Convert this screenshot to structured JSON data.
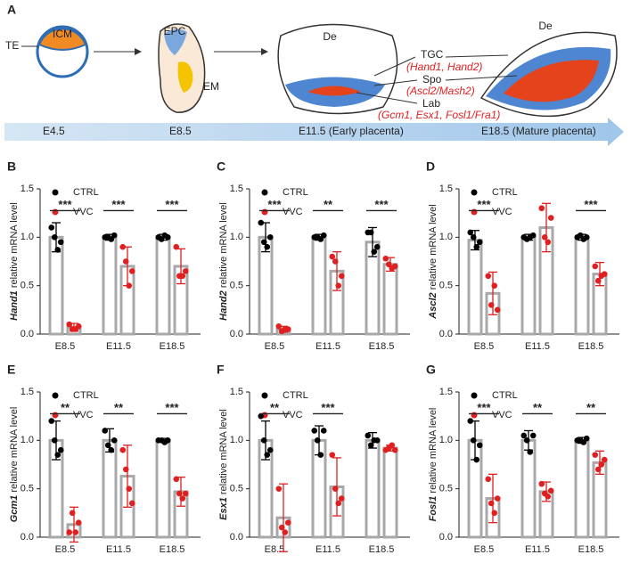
{
  "diagram": {
    "panel": "A",
    "te": "TE",
    "icm": "ICM",
    "epc": "EPC",
    "em": "EM",
    "de_early": "De",
    "de_mature": "De",
    "tgc": "TGC",
    "tgc_genes": "(Hand1, Hand2)",
    "spo": "Spo",
    "spo_genes": "(Ascl2/Mash2)",
    "lab": "Lab",
    "lab_genes": "(Gcm1, Esx1, Fosl1/Fra1)",
    "stages": [
      "E4.5",
      "E8.5",
      "E11.5 (Early placenta)",
      "E18.5 (Mature placenta)"
    ]
  },
  "chart_data": [
    {
      "type": "bar",
      "panel": "B",
      "ylabel": {
        "gene": "Hand1",
        "text": " relative mRNA level"
      },
      "categories": [
        "E8.5",
        "E11.5",
        "E18.5"
      ],
      "ylim": [
        0,
        1.5
      ],
      "yticks": [
        {
          "value": 0,
          "label": "0.0"
        },
        0.5,
        {
          "value": 1,
          "label": "1.0"
        },
        1.5
      ],
      "bar_color": "#a8a8a8",
      "series": [
        {
          "name": "CTRL",
          "color": "#000000",
          "values": [
            1.0,
            1.0,
            1.0
          ],
          "errors": [
            0.15,
            0.03,
            0.03
          ],
          "points": [
            [
              1.1,
              1.0,
              0.87,
              0.95
            ],
            [
              1.0,
              1.0,
              0.98,
              1.02
            ],
            [
              1.0,
              0.98,
              1.02,
              1.0
            ]
          ]
        },
        {
          "name": "VVC",
          "color": "#e02020",
          "values": [
            0.07,
            0.7,
            0.7
          ],
          "errors": [
            0.04,
            0.2,
            0.18
          ],
          "points": [
            [
              0.1,
              0.05,
              0.05,
              0.08
            ],
            [
              0.9,
              0.75,
              0.5,
              0.65
            ],
            [
              0.9,
              0.6,
              0.6,
              0.65
            ]
          ]
        }
      ],
      "significance": [
        "***",
        "***",
        "***"
      ]
    },
    {
      "type": "bar",
      "panel": "C",
      "ylabel": {
        "gene": "Hand2",
        "text": " relative mRNA level"
      },
      "categories": [
        "E8.5",
        "E11.5",
        "E18.5"
      ],
      "ylim": [
        0,
        1.5
      ],
      "yticks": [
        {
          "value": 0,
          "label": "0.0"
        },
        0.5,
        {
          "value": 1,
          "label": "1.0"
        },
        1.5
      ],
      "bar_color": "#a8a8a8",
      "series": [
        {
          "name": "CTRL",
          "color": "#000000",
          "values": [
            1.0,
            1.0,
            0.95
          ],
          "errors": [
            0.15,
            0.03,
            0.15
          ],
          "points": [
            [
              1.15,
              0.95,
              0.9,
              1.0
            ],
            [
              1.0,
              1.0,
              0.98,
              1.02
            ],
            [
              1.05,
              1.05,
              0.85,
              0.9
            ]
          ]
        },
        {
          "name": "VVC",
          "color": "#e02020",
          "values": [
            0.05,
            0.65,
            0.72
          ],
          "errors": [
            0.03,
            0.2,
            0.07
          ],
          "points": [
            [
              0.08,
              0.03,
              0.05,
              0.05
            ],
            [
              0.8,
              0.75,
              0.5,
              0.6
            ],
            [
              0.78,
              0.72,
              0.68,
              0.7
            ]
          ]
        }
      ],
      "significance": [
        "***",
        "**",
        "***"
      ]
    },
    {
      "type": "bar",
      "panel": "D",
      "ylabel": {
        "gene": "Ascl2",
        "text": " relative mRNA level"
      },
      "categories": [
        "E8.5",
        "E11.5",
        "E18.5"
      ],
      "ylim": [
        0,
        1.5
      ],
      "yticks": [
        {
          "value": 0,
          "label": "0.0"
        },
        0.5,
        {
          "value": 1,
          "label": "1.0"
        },
        1.5
      ],
      "bar_color": "#a8a8a8",
      "series": [
        {
          "name": "CTRL",
          "color": "#000000",
          "values": [
            0.97,
            1.0,
            1.0
          ],
          "errors": [
            0.1,
            0.03,
            0.03
          ],
          "points": [
            [
              1.05,
              1.0,
              0.9,
              0.95
            ],
            [
              1.0,
              0.98,
              1.0,
              1.02
            ],
            [
              1.0,
              1.02,
              0.98,
              1.0
            ]
          ]
        },
        {
          "name": "VVC",
          "color": "#e02020",
          "values": [
            0.42,
            1.1,
            0.62
          ],
          "errors": [
            0.22,
            0.25,
            0.12
          ],
          "points": [
            [
              0.6,
              0.3,
              0.5,
              0.25
            ],
            [
              1.3,
              1.0,
              0.95,
              1.2
            ],
            [
              0.7,
              0.55,
              0.6,
              0.62
            ]
          ]
        }
      ],
      "significance": [
        "***",
        null,
        "***"
      ]
    },
    {
      "type": "bar",
      "panel": "E",
      "ylabel": {
        "gene": "Gcm1",
        "text": " relative mRNA level"
      },
      "categories": [
        "E8.5",
        "E11.5",
        "E18.5"
      ],
      "ylim": [
        0,
        1.5
      ],
      "yticks": [
        {
          "value": 0,
          "label": "0.0"
        },
        0.5,
        {
          "value": 1,
          "label": "1.0"
        },
        1.5
      ],
      "bar_color": "#a8a8a8",
      "series": [
        {
          "name": "CTRL",
          "color": "#000000",
          "values": [
            1.0,
            1.0,
            1.0
          ],
          "errors": [
            0.2,
            0.12,
            0.02
          ],
          "points": [
            [
              1.2,
              1.0,
              0.85,
              0.9
            ],
            [
              1.1,
              0.95,
              0.9,
              1.0
            ],
            [
              1.0,
              1.0,
              0.98,
              1.0
            ]
          ]
        },
        {
          "name": "VVC",
          "color": "#e02020",
          "values": [
            0.13,
            0.63,
            0.47
          ],
          "errors": [
            0.18,
            0.32,
            0.15
          ],
          "points": [
            [
              0.05,
              0.25,
              0.05,
              0.15
            ],
            [
              0.9,
              0.7,
              0.5,
              0.35
            ],
            [
              0.6,
              0.45,
              0.4,
              0.45
            ]
          ]
        }
      ],
      "significance": [
        "**",
        "**",
        "***"
      ]
    },
    {
      "type": "bar",
      "panel": "F",
      "ylabel": {
        "gene": "Esx1",
        "text": " relative mRNA level"
      },
      "categories": [
        "E8.5",
        "E11.5",
        "E18.5"
      ],
      "ylim": [
        0,
        1.5
      ],
      "yticks": [
        {
          "value": 0,
          "label": "0.0"
        },
        0.5,
        {
          "value": 1,
          "label": "1.0"
        },
        1.5
      ],
      "bar_color": "#a8a8a8",
      "series": [
        {
          "name": "CTRL",
          "color": "#000000",
          "values": [
            1.0,
            1.0,
            1.0
          ],
          "errors": [
            0.2,
            0.15,
            0.08
          ],
          "points": [
            [
              1.25,
              1.0,
              0.85,
              0.9
            ],
            [
              1.1,
              1.0,
              0.85,
              1.1
            ],
            [
              1.05,
              0.95,
              1.0,
              1.0
            ]
          ]
        },
        {
          "name": "VVC",
          "color": "#e02020",
          "values": [
            0.2,
            0.52,
            0.92
          ],
          "errors": [
            0.35,
            0.3,
            0.03
          ],
          "points": [
            [
              0.5,
              0.1,
              0.05,
              0.15
            ],
            [
              0.85,
              0.5,
              0.35,
              0.4
            ],
            [
              0.9,
              0.92,
              0.95,
              0.9
            ]
          ]
        }
      ],
      "significance": [
        "**",
        "***",
        null
      ]
    },
    {
      "type": "bar",
      "panel": "G",
      "ylabel": {
        "gene": "Fosl1",
        "text": " relative mRNA level"
      },
      "categories": [
        "E8.5",
        "E11.5",
        "E18.5"
      ],
      "ylim": [
        0,
        1.5
      ],
      "yticks": [
        {
          "value": 0,
          "label": "0.0"
        },
        0.5,
        {
          "value": 1,
          "label": "1.0"
        },
        1.5
      ],
      "bar_color": "#a8a8a8",
      "series": [
        {
          "name": "CTRL",
          "color": "#000000",
          "values": [
            1.0,
            1.0,
            1.0
          ],
          "errors": [
            0.2,
            0.1,
            0.03
          ],
          "points": [
            [
              1.2,
              1.0,
              0.8,
              0.95
            ],
            [
              1.05,
              1.0,
              0.88,
              1.05
            ],
            [
              1.0,
              1.0,
              0.98,
              1.02
            ]
          ]
        },
        {
          "name": "VVC",
          "color": "#e02020",
          "values": [
            0.4,
            0.47,
            0.77
          ],
          "errors": [
            0.25,
            0.1,
            0.12
          ],
          "points": [
            [
              0.6,
              0.35,
              0.25,
              0.4
            ],
            [
              0.55,
              0.45,
              0.42,
              0.48
            ],
            [
              0.85,
              0.7,
              0.75,
              0.8
            ]
          ]
        }
      ],
      "significance": [
        "***",
        "**",
        "**"
      ]
    }
  ]
}
